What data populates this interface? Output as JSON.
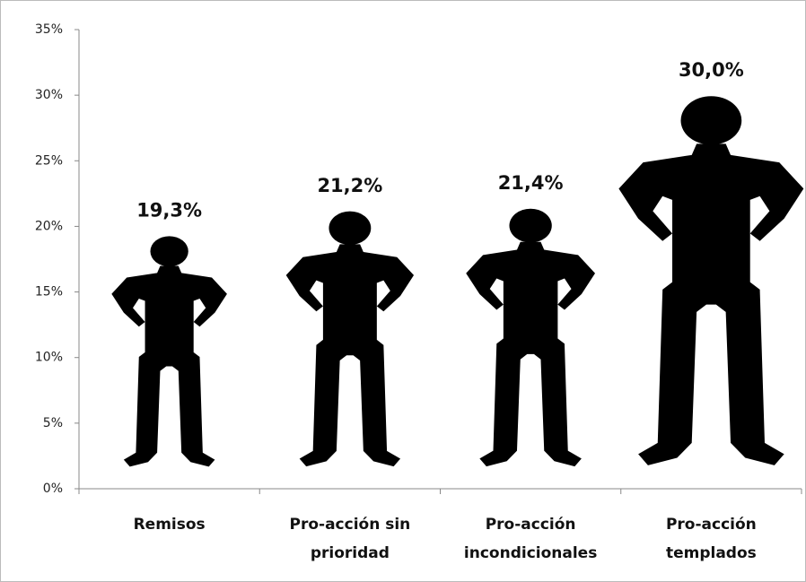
{
  "chart_data": {
    "type": "pictogram",
    "categories": [
      "Remisos",
      "Pro-acción sin prioridad",
      "Pro-acción incondicionales",
      "Pro-acción templados"
    ],
    "values": [
      19.3,
      21.2,
      21.4,
      30.0
    ],
    "value_labels": [
      "19,3%",
      "21,2%",
      "21,4%",
      "30,0%"
    ],
    "color": "#000000",
    "ylim": [
      0,
      35
    ],
    "yticks": [
      {
        "value": 0,
        "label": "0%"
      },
      {
        "value": 5,
        "label": "5%"
      },
      {
        "value": 10,
        "label": "10%"
      },
      {
        "value": 15,
        "label": "15%"
      },
      {
        "value": 20,
        "label": "20%"
      },
      {
        "value": 25,
        "label": "25%"
      },
      {
        "value": 30,
        "label": "30%"
      },
      {
        "value": 35,
        "label": "35%"
      }
    ]
  }
}
